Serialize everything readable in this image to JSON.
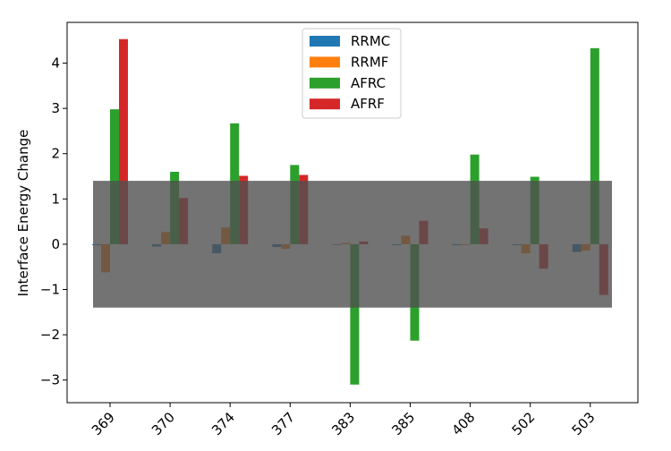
{
  "chart_data": {
    "type": "bar",
    "title": "",
    "xlabel": "",
    "ylabel": "Interface Energy Change",
    "categories": [
      "369",
      "370",
      "374",
      "377",
      "383",
      "385",
      "408",
      "502",
      "503"
    ],
    "ylim": [
      -3.5,
      4.9
    ],
    "yticks": [
      -3,
      -2,
      -1,
      0,
      1,
      2,
      3,
      4
    ],
    "ytick_labels": [
      "−3",
      "−2",
      "−1",
      "0",
      "1",
      "2",
      "3",
      "4"
    ],
    "grid": false,
    "legend_position": "top-center",
    "series": [
      {
        "name": "RRMC",
        "color": "#1f77b4",
        "values": [
          -0.02,
          -0.05,
          -0.2,
          -0.06,
          0.0,
          -0.02,
          -0.02,
          -0.02,
          -0.17
        ]
      },
      {
        "name": "RRMF",
        "color": "#ff7f0e",
        "values": [
          -0.62,
          0.27,
          0.37,
          -0.1,
          0.03,
          0.19,
          0.0,
          -0.2,
          -0.14
        ]
      },
      {
        "name": "AFRC",
        "color": "#2ca02c",
        "values": [
          2.98,
          1.6,
          2.67,
          1.75,
          -3.1,
          -2.13,
          1.98,
          1.49,
          4.33
        ]
      },
      {
        "name": "AFRF",
        "color": "#d62728",
        "values": [
          4.53,
          1.02,
          1.51,
          1.53,
          0.06,
          0.52,
          0.35,
          -0.54,
          -1.12
        ]
      }
    ],
    "annotations": [
      {
        "type": "band",
        "y0": -1.4,
        "y1": 1.4,
        "color": "#505050",
        "opacity": 0.8
      }
    ]
  }
}
